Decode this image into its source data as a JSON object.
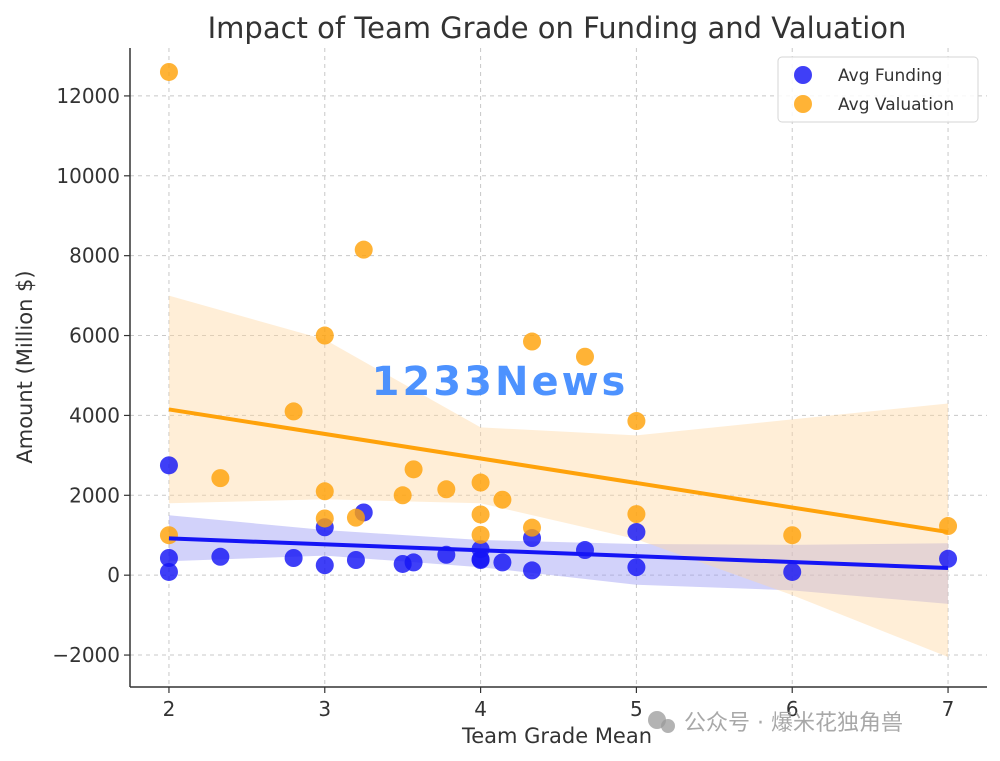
{
  "chart_data": {
    "type": "scatter",
    "title": "Impact of Team Grade on Funding and Valuation",
    "xlabel": "Team Grade Mean",
    "ylabel": "Amount (Million $)",
    "xlim": [
      1.75,
      7.25
    ],
    "ylim": [
      -2800,
      13200
    ],
    "xticks": [
      2,
      3,
      4,
      5,
      6,
      7
    ],
    "yticks": [
      -2000,
      0,
      2000,
      4000,
      6000,
      8000,
      10000,
      12000
    ],
    "grid": true,
    "legend_position": "top-right",
    "series": [
      {
        "name": "Avg Funding",
        "color": "#1515f5",
        "points": [
          [
            2,
            2750
          ],
          [
            2,
            430
          ],
          [
            2,
            80
          ],
          [
            2.33,
            460
          ],
          [
            2.8,
            430
          ],
          [
            3,
            1200
          ],
          [
            3,
            250
          ],
          [
            3.2,
            380
          ],
          [
            3.25,
            1570
          ],
          [
            3.5,
            280
          ],
          [
            3.57,
            320
          ],
          [
            3.78,
            510
          ],
          [
            4,
            650
          ],
          [
            4,
            380
          ],
          [
            4,
            400
          ],
          [
            4.14,
            320
          ],
          [
            4.33,
            930
          ],
          [
            4.33,
            120
          ],
          [
            4.67,
            630
          ],
          [
            5,
            1080
          ],
          [
            5,
            200
          ],
          [
            6,
            80
          ],
          [
            7,
            410
          ]
        ],
        "fit": {
          "x": [
            2,
            7
          ],
          "y": [
            920,
            180
          ]
        },
        "band": {
          "x": [
            2,
            3,
            4,
            5,
            6,
            7
          ],
          "upper": [
            1500,
            1130,
            880,
            780,
            760,
            800
          ],
          "lower": [
            350,
            490,
            200,
            -240,
            -380,
            -720
          ]
        }
      },
      {
        "name": "Avg Valuation",
        "color": "#ffa20a",
        "points": [
          [
            2,
            12600
          ],
          [
            2,
            1000
          ],
          [
            2.33,
            2430
          ],
          [
            2.8,
            4100
          ],
          [
            3,
            6000
          ],
          [
            3,
            2100
          ],
          [
            3,
            1420
          ],
          [
            3.2,
            1440
          ],
          [
            3.25,
            8150
          ],
          [
            3.5,
            2000
          ],
          [
            3.57,
            2650
          ],
          [
            3.78,
            2150
          ],
          [
            4,
            2320
          ],
          [
            4,
            1520
          ],
          [
            4,
            1010
          ],
          [
            4.14,
            1890
          ],
          [
            4.33,
            5850
          ],
          [
            4.33,
            1190
          ],
          [
            4.67,
            5470
          ],
          [
            5,
            3860
          ],
          [
            5,
            1530
          ],
          [
            6,
            1000
          ],
          [
            7,
            1230
          ]
        ],
        "fit": {
          "x": [
            2,
            7
          ],
          "y": [
            4150,
            1080
          ]
        },
        "band": {
          "x": [
            2,
            3,
            4,
            5,
            6,
            7
          ],
          "upper": [
            7000,
            5900,
            3700,
            3500,
            3900,
            4300
          ],
          "lower": [
            1800,
            1900,
            1800,
            900,
            -500,
            -2050
          ]
        }
      }
    ]
  },
  "watermark": {
    "main": "1233News",
    "wechat": "公众号 · 爆米花独角兽"
  }
}
